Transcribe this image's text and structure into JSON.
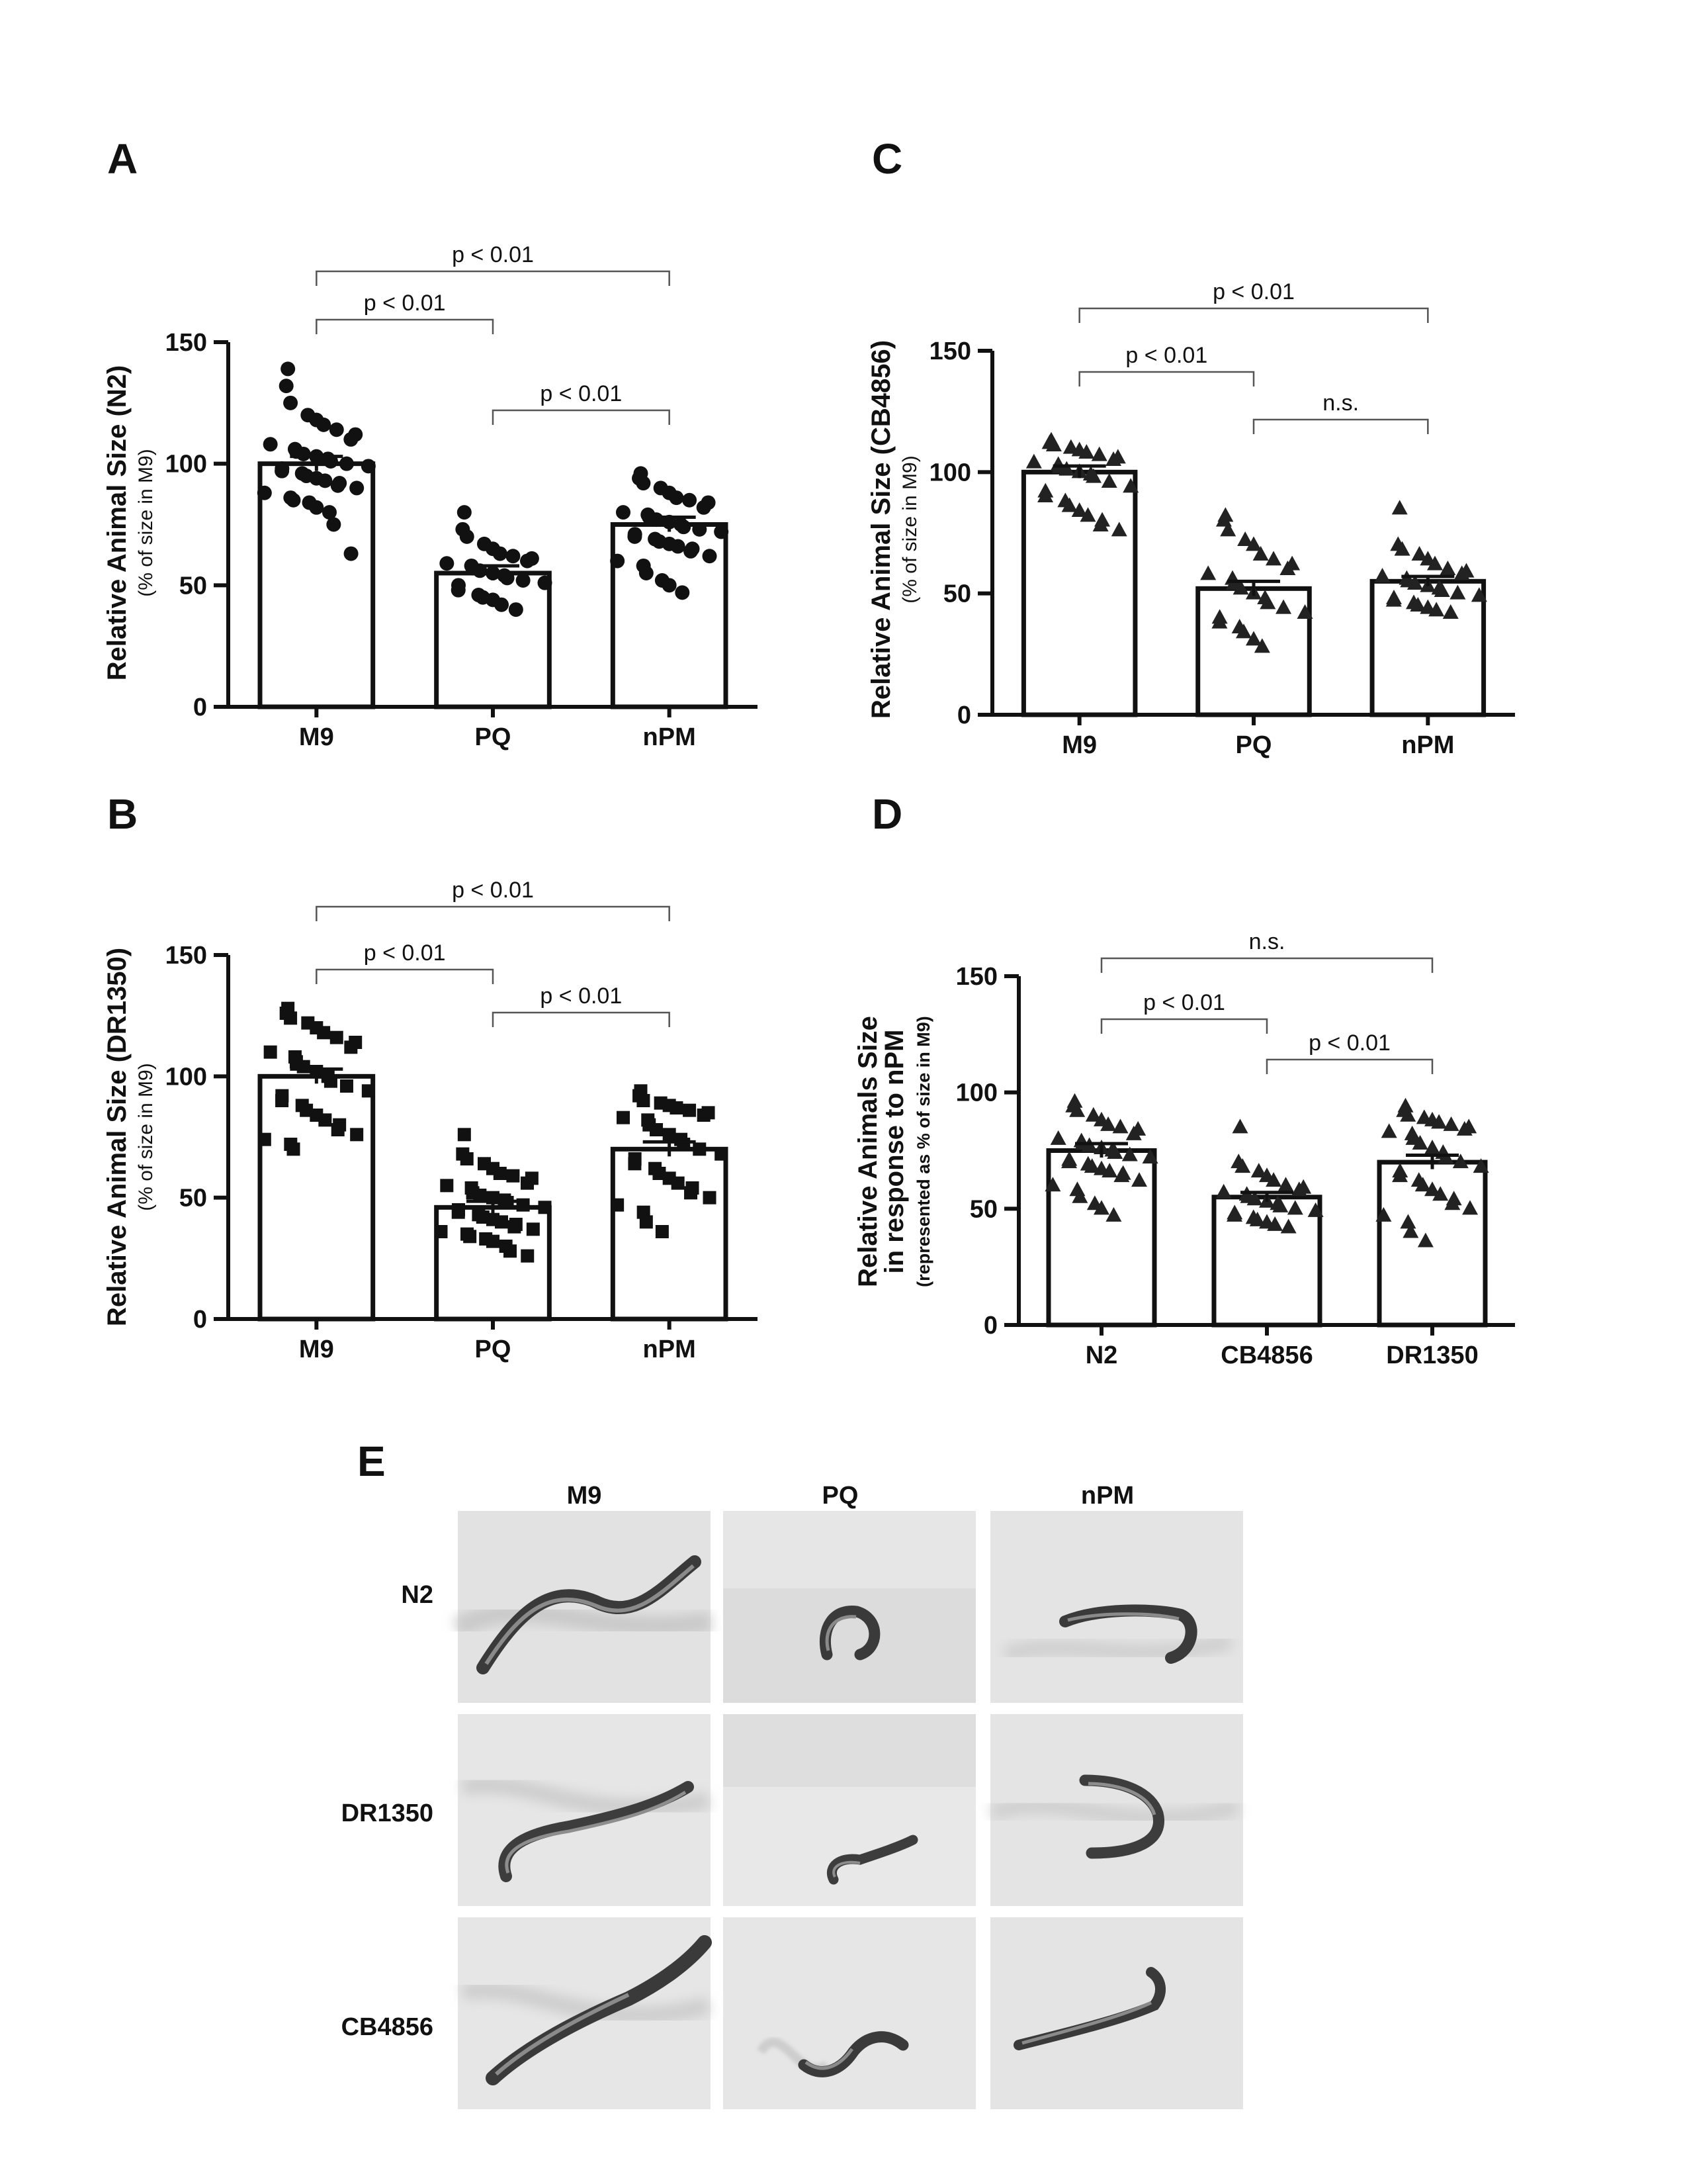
{
  "panel_e": {
    "label": "E",
    "columns": [
      "M9",
      "PQ",
      "nPM"
    ],
    "rows": [
      "N2",
      "DR1350",
      "CB4856"
    ]
  },
  "chart_data": [
    {
      "panel": "A",
      "type": "bar",
      "marker": "circle",
      "categories": [
        "M9",
        "PQ",
        "nPM"
      ],
      "values": [
        100,
        55,
        75
      ],
      "sem": [
        3,
        3,
        3
      ],
      "title": "",
      "ylabel": "Relative Animal Size (N2)",
      "ylabel2": "(% of size in M9)",
      "ylabel3": "",
      "ylim": [
        0,
        150
      ],
      "yticks": [
        0,
        50,
        100,
        150
      ],
      "points": [
        [
          139,
          132,
          125,
          120,
          118,
          116,
          114,
          112,
          110,
          108,
          106,
          105,
          104,
          103,
          102,
          101,
          100,
          99,
          98,
          97,
          96,
          95,
          94,
          93,
          92,
          91,
          90,
          88,
          86,
          85,
          84,
          82,
          80,
          75,
          63
        ],
        [
          80,
          73,
          70,
          67,
          65,
          63,
          62,
          61,
          60,
          59,
          58,
          57,
          56,
          55,
          54,
          53,
          52,
          51,
          50,
          48,
          46,
          45,
          44,
          42,
          40
        ],
        [
          96,
          94,
          92,
          90,
          88,
          86,
          85,
          84,
          82,
          80,
          79,
          78,
          77,
          76,
          75,
          74,
          73,
          72,
          71,
          70,
          69,
          68,
          67,
          66,
          65,
          64,
          62,
          60,
          58,
          55,
          52,
          50,
          47
        ]
      ],
      "brackets": [
        {
          "from": 0,
          "to": 2,
          "label": "p < 0.01"
        },
        {
          "from": 0,
          "to": 1,
          "label": "p < 0.01"
        },
        {
          "from": 1,
          "to": 2,
          "label": "p < 0.01"
        }
      ]
    },
    {
      "panel": "B",
      "type": "bar",
      "marker": "square",
      "categories": [
        "M9",
        "PQ",
        "nPM"
      ],
      "values": [
        100,
        46,
        70
      ],
      "sem": [
        3,
        2.5,
        3
      ],
      "title": "",
      "ylabel": "Relative Animal Size (DR1350)",
      "ylabel2": "(% of size in M9)",
      "ylabel3": "",
      "ylim": [
        0,
        150
      ],
      "yticks": [
        0,
        50,
        100,
        150
      ],
      "points": [
        [
          128,
          126,
          124,
          122,
          120,
          118,
          116,
          114,
          112,
          110,
          108,
          106,
          104,
          102,
          100,
          98,
          96,
          94,
          92,
          90,
          88,
          86,
          84,
          82,
          80,
          78,
          76,
          74,
          72,
          70
        ],
        [
          76,
          68,
          66,
          64,
          62,
          60,
          59,
          58,
          56,
          55,
          54,
          52,
          51,
          50,
          49,
          48,
          47,
          46,
          45,
          44,
          43,
          42,
          41,
          40,
          39,
          38,
          37,
          36,
          35,
          34,
          33,
          32,
          30,
          28,
          26
        ],
        [
          94,
          92,
          90,
          89,
          88,
          87,
          86,
          85,
          84,
          83,
          82,
          80,
          78,
          76,
          74,
          72,
          70,
          68,
          66,
          64,
          62,
          60,
          58,
          56,
          54,
          52,
          50,
          47,
          44,
          40,
          36
        ]
      ],
      "brackets": [
        {
          "from": 0,
          "to": 2,
          "label": "p < 0.01"
        },
        {
          "from": 0,
          "to": 1,
          "label": "p < 0.01"
        },
        {
          "from": 1,
          "to": 2,
          "label": "p < 0.01"
        }
      ]
    },
    {
      "panel": "C",
      "type": "bar",
      "marker": "triangle",
      "categories": [
        "M9",
        "PQ",
        "nPM"
      ],
      "values": [
        100,
        52,
        55
      ],
      "sem": [
        2.5,
        3,
        2
      ],
      "title": "",
      "ylabel": "Relative Animal Size (CB4856)",
      "ylabel2": "(% of size in M9)",
      "ylabel3": "",
      "ylim": [
        0,
        150
      ],
      "yticks": [
        0,
        50,
        100,
        150
      ],
      "points": [
        [
          113,
          112,
          111,
          110,
          109,
          108,
          107,
          106,
          105,
          104,
          103,
          102,
          101,
          100,
          99,
          98,
          96,
          94,
          92,
          90,
          88,
          86,
          84,
          82,
          80,
          78,
          76
        ],
        [
          82,
          80,
          76,
          72,
          70,
          66,
          64,
          62,
          60,
          58,
          56,
          54,
          52,
          50,
          48,
          46,
          44,
          42,
          40,
          38,
          36,
          34,
          31,
          28
        ],
        [
          85,
          70,
          68,
          66,
          64,
          62,
          60,
          59,
          58,
          57,
          56,
          55,
          54,
          53,
          52,
          51,
          50,
          49,
          48,
          47,
          46,
          45,
          44,
          43,
          42
        ]
      ],
      "brackets": [
        {
          "from": 0,
          "to": 2,
          "label": "p < 0.01"
        },
        {
          "from": 0,
          "to": 1,
          "label": "p < 0.01"
        },
        {
          "from": 1,
          "to": 2,
          "label": "n.s."
        }
      ]
    },
    {
      "panel": "D",
      "type": "bar",
      "marker": "triangle",
      "categories": [
        "N2",
        "CB4856",
        "DR1350"
      ],
      "values": [
        75,
        55,
        70
      ],
      "sem": [
        3,
        2,
        3
      ],
      "title": "",
      "ylabel": "Relative Animals Size",
      "ylabel2": "in response to nPM",
      "ylabel3": "(represented as % of size in M9)",
      "ylim": [
        0,
        150
      ],
      "yticks": [
        0,
        50,
        100,
        150
      ],
      "points": [
        [
          96,
          94,
          92,
          90,
          88,
          86,
          85,
          84,
          82,
          80,
          79,
          78,
          77,
          76,
          75,
          74,
          73,
          72,
          71,
          70,
          69,
          68,
          67,
          66,
          65,
          64,
          62,
          60,
          58,
          55,
          52,
          50,
          47
        ],
        [
          85,
          70,
          68,
          66,
          64,
          62,
          60,
          59,
          58,
          57,
          56,
          55,
          54,
          53,
          52,
          51,
          50,
          49,
          48,
          47,
          46,
          45,
          44,
          43,
          42
        ],
        [
          94,
          92,
          90,
          89,
          88,
          87,
          86,
          85,
          84,
          83,
          82,
          80,
          78,
          76,
          74,
          72,
          70,
          68,
          66,
          64,
          62,
          60,
          58,
          56,
          54,
          52,
          50,
          47,
          44,
          40,
          36
        ]
      ],
      "brackets": [
        {
          "from": 0,
          "to": 2,
          "label": "n.s."
        },
        {
          "from": 0,
          "to": 1,
          "label": "p < 0.01"
        },
        {
          "from": 1,
          "to": 2,
          "label": "p < 0.01"
        }
      ]
    }
  ]
}
